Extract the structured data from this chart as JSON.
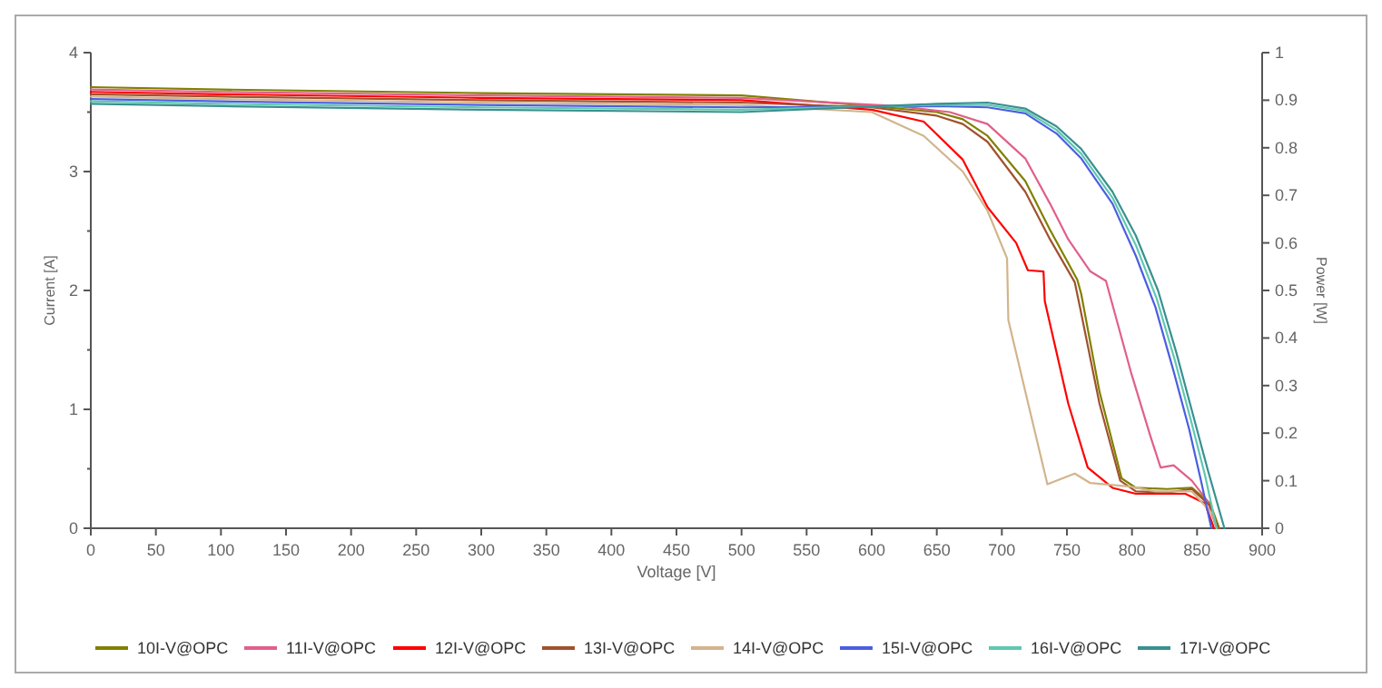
{
  "chart_data": {
    "type": "line",
    "xlabel": "Voltage [V]",
    "ylabel": "Current [A]",
    "y2label": "Power [W]",
    "xlim": [
      0,
      900
    ],
    "xticks": [
      0,
      50,
      100,
      150,
      200,
      250,
      300,
      350,
      400,
      450,
      500,
      550,
      600,
      650,
      700,
      750,
      800,
      850,
      900
    ],
    "ylim": [
      0,
      4
    ],
    "yticks": [
      0,
      1,
      2,
      3,
      4
    ],
    "y2lim": [
      0,
      1
    ],
    "y2ticks": [
      0,
      0.1,
      0.2,
      0.3,
      0.4,
      0.5,
      0.6,
      0.7,
      0.8,
      0.9,
      1
    ],
    "grid": false,
    "legend": "bottom",
    "marker": "none",
    "line_style": "solid",
    "series": [
      {
        "name": "10I-V@OPC",
        "color": "#808000",
        "x": [
          0,
          100,
          300,
          500,
          600,
          650,
          670,
          689,
          718,
          737,
          758,
          761,
          775,
          792,
          803,
          827,
          846,
          860,
          867
        ],
        "values": [
          3.71,
          3.69,
          3.66,
          3.64,
          3.55,
          3.5,
          3.44,
          3.3,
          2.92,
          2.51,
          2.09,
          1.97,
          1.15,
          0.42,
          0.34,
          0.33,
          0.34,
          0.21,
          0
        ]
      },
      {
        "name": "11I-V@OPC",
        "color": "#e0608a",
        "x": [
          0,
          100,
          300,
          500,
          620,
          660,
          689,
          718,
          737,
          751,
          768,
          780,
          799,
          814,
          822,
          832,
          846,
          858,
          865
        ],
        "values": [
          3.69,
          3.67,
          3.64,
          3.62,
          3.55,
          3.5,
          3.4,
          3.11,
          2.73,
          2.43,
          2.16,
          2.08,
          1.32,
          0.78,
          0.51,
          0.53,
          0.4,
          0.23,
          0
        ]
      },
      {
        "name": "12I-V@OPC",
        "color": "#ff0000",
        "x": [
          0,
          100,
          300,
          500,
          600,
          640,
          670,
          689,
          711,
          720,
          732,
          733,
          751,
          766,
          785,
          803,
          822,
          841,
          856,
          863
        ],
        "values": [
          3.67,
          3.65,
          3.62,
          3.6,
          3.52,
          3.42,
          3.1,
          2.7,
          2.4,
          2.17,
          2.16,
          1.91,
          1.05,
          0.51,
          0.34,
          0.29,
          0.29,
          0.29,
          0.21,
          0
        ]
      },
      {
        "name": "13I-V@OPC",
        "color": "#a0522d",
        "x": [
          0,
          100,
          300,
          500,
          600,
          650,
          670,
          689,
          718,
          737,
          756,
          760,
          775,
          791,
          803,
          827,
          846,
          860,
          866
        ],
        "values": [
          3.65,
          3.63,
          3.6,
          3.58,
          3.54,
          3.47,
          3.4,
          3.25,
          2.83,
          2.43,
          2.07,
          1.86,
          1.05,
          0.4,
          0.31,
          0.3,
          0.33,
          0.19,
          0
        ]
      },
      {
        "name": "14I-V@OPC",
        "color": "#d2b48c",
        "x": [
          0,
          100,
          300,
          500,
          600,
          640,
          670,
          689,
          704,
          705,
          735,
          756,
          768,
          799,
          818,
          846,
          862,
          865
        ],
        "values": [
          3.63,
          3.61,
          3.58,
          3.56,
          3.5,
          3.3,
          3.0,
          2.67,
          2.27,
          1.75,
          0.37,
          0.46,
          0.38,
          0.35,
          0.31,
          0.31,
          0.12,
          0
        ]
      },
      {
        "name": "15I-V@OPC",
        "color": "#4b5ee0",
        "x": [
          0,
          100,
          300,
          500,
          650,
          689,
          718,
          742,
          761,
          785,
          803,
          818,
          832,
          844,
          853,
          861
        ],
        "values": [
          3.61,
          3.59,
          3.56,
          3.54,
          3.55,
          3.54,
          3.49,
          3.32,
          3.11,
          2.73,
          2.29,
          1.86,
          1.32,
          0.83,
          0.4,
          0
        ]
      },
      {
        "name": "16I-V@OPC",
        "color": "#5fc8b0",
        "x": [
          0,
          100,
          300,
          500,
          650,
          689,
          718,
          742,
          761,
          785,
          803,
          819,
          833,
          845,
          856,
          865
        ],
        "values": [
          3.59,
          3.57,
          3.54,
          3.52,
          3.56,
          3.56,
          3.51,
          3.35,
          3.15,
          2.78,
          2.38,
          1.93,
          1.41,
          0.92,
          0.45,
          0
        ]
      },
      {
        "name": "17I-V@OPC",
        "color": "#3a9090",
        "x": [
          0,
          100,
          300,
          500,
          650,
          689,
          718,
          742,
          761,
          785,
          803,
          820,
          834,
          846,
          858,
          871
        ],
        "values": [
          3.57,
          3.55,
          3.52,
          3.5,
          3.57,
          3.58,
          3.53,
          3.38,
          3.19,
          2.83,
          2.46,
          2.0,
          1.48,
          0.99,
          0.5,
          0
        ]
      }
    ]
  }
}
